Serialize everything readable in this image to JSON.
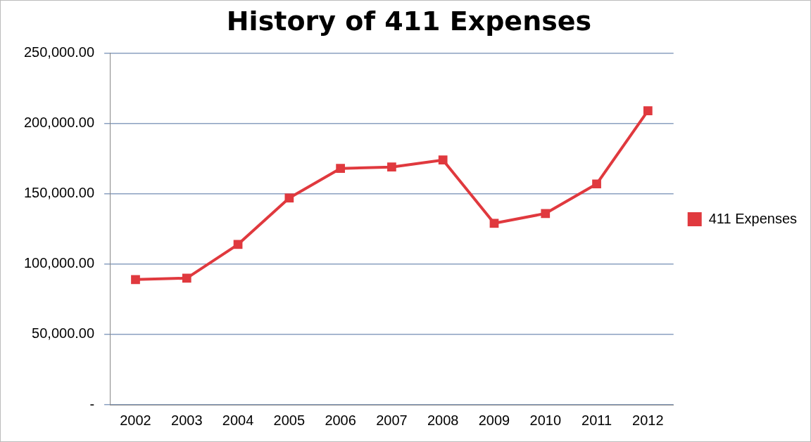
{
  "chart_data": {
    "type": "line",
    "title": "History of 411 Expenses",
    "categories": [
      "2002",
      "2003",
      "2004",
      "2005",
      "2006",
      "2007",
      "2008",
      "2009",
      "2010",
      "2011",
      "2012"
    ],
    "series": [
      {
        "name": "411 Expenses",
        "color": "#e0393e",
        "values": [
          89000,
          90000,
          114000,
          147000,
          168000,
          169000,
          174000,
          129000,
          136000,
          157000,
          209000
        ]
      }
    ],
    "ylim": [
      0,
      250000
    ],
    "yticks": [
      {
        "value": 0,
        "label": "-"
      },
      {
        "value": 50000,
        "label": "50,000.00"
      },
      {
        "value": 100000,
        "label": "100,000.00"
      },
      {
        "value": 150000,
        "label": "150,000.00"
      },
      {
        "value": 200000,
        "label": "200,000.00"
      },
      {
        "value": 250000,
        "label": "250,000.00"
      }
    ],
    "grid": "y",
    "legend": "right",
    "marker": "square",
    "line_style": "solid"
  }
}
